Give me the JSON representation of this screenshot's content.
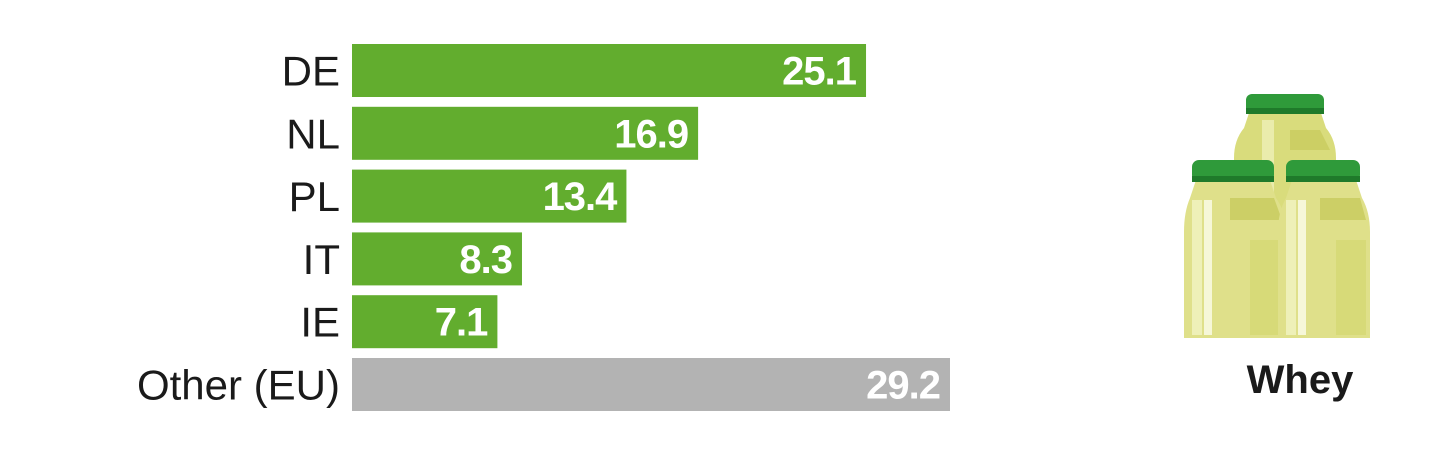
{
  "chart_data": {
    "type": "bar",
    "orientation": "horizontal",
    "categories": [
      "DE",
      "NL",
      "PL",
      "IT",
      "IE",
      "Other (EU)"
    ],
    "values": [
      25.1,
      16.9,
      13.4,
      8.3,
      7.1,
      29.2
    ],
    "value_labels": [
      "25.1",
      "16.9",
      "13.4",
      "8.3",
      "7.1",
      "29.2"
    ],
    "bar_colors": [
      "#62ad2e",
      "#62ad2e",
      "#62ad2e",
      "#62ad2e",
      "#62ad2e",
      "#b3b3b3"
    ],
    "value_label_position": "inside-end",
    "grid": false,
    "xlim": [
      0,
      29.2
    ]
  },
  "product": {
    "label": "Whey",
    "icon": "whey-jars-icon"
  },
  "colors": {
    "green": "#62ad2e",
    "grey": "#b3b3b3",
    "jar_lid": "#2f9a3a",
    "jar_body": "#dfe08a"
  }
}
